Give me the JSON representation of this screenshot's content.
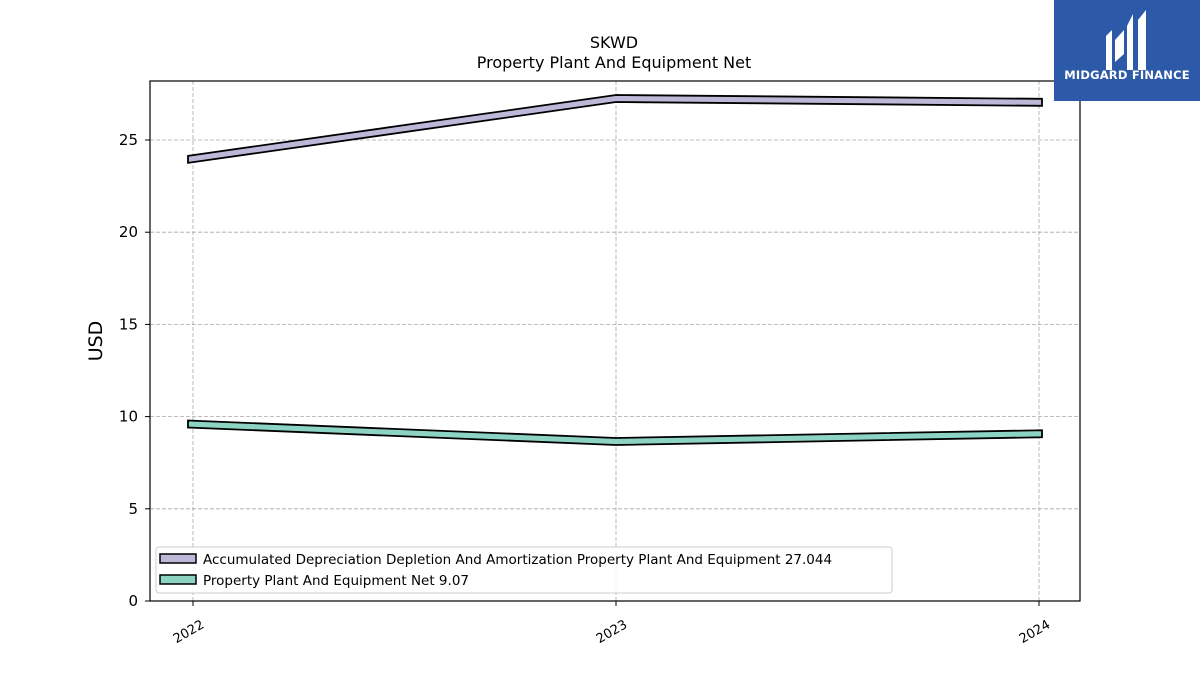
{
  "brand": {
    "name": "MIDGARD FINANCE",
    "color": "#2c5aa8"
  },
  "chart_data": {
    "type": "line",
    "title": "SKWD",
    "subtitle": "Property Plant And Equipment Net",
    "xlabel": "",
    "ylabel": "USD",
    "x": [
      "2022",
      "2023",
      "2024"
    ],
    "ylim": [
      0,
      28.2
    ],
    "yticks": [
      0,
      5,
      10,
      15,
      20,
      25
    ],
    "grid": true,
    "legend_position": "lower-left",
    "series": [
      {
        "name": "Accumulated Depreciation Depletion And Amortization Property Plant And Equipment",
        "legend_label": "Accumulated Depreciation Depletion And Amortization Property Plant And Equipment  27.044",
        "values": [
          23.95,
          27.25,
          27.044
        ],
        "color": "#bcb8d8"
      },
      {
        "name": "Property Plant And Equipment Net",
        "legend_label": "Property Plant And Equipment Net  9.07",
        "values": [
          9.6,
          8.65,
          9.07
        ],
        "color": "#8dd3c4"
      }
    ]
  }
}
